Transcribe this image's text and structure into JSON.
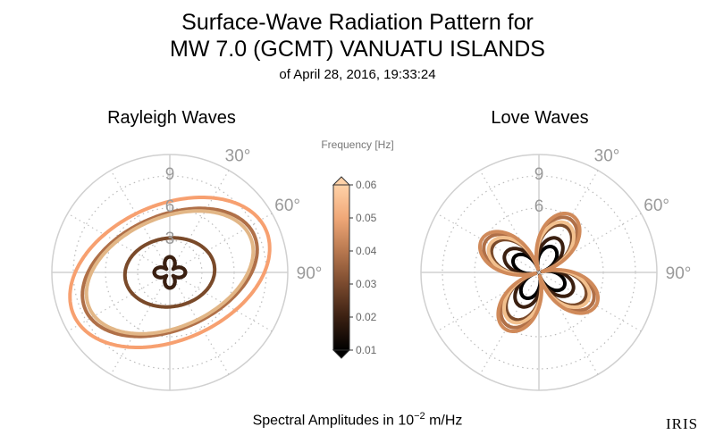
{
  "header": {
    "title_line1": "Surface-Wave Radiation Pattern for",
    "title_line2": "MW 7.0 (GCMT) VANUATU ISLANDS",
    "subtitle": "of April 28, 2016, 19:33:24"
  },
  "footer": {
    "label_prefix": "Spectral Amplitudes in 10",
    "label_exp": "−2",
    "label_unit": " m/Hz"
  },
  "logo_text": "IRIS",
  "chart_data": [
    {
      "type": "polar-line",
      "title": "Rayleigh Waves",
      "radial_ticks": [
        "3",
        "6",
        "9"
      ],
      "radial_tick_values": [
        3,
        6,
        9
      ],
      "rmax": 11,
      "angle_ticks": [
        "30°",
        "60°",
        "90°"
      ],
      "angle_tick_values": [
        30,
        60,
        90
      ],
      "grid": true,
      "series": [
        {
          "frequency": 0.01,
          "color": "#1a0d05",
          "shape": "four-lobe",
          "a": 1.0,
          "b": 0.45,
          "angle": 45
        },
        {
          "frequency": 0.02,
          "color": "#3a1f10",
          "shape": "four-lobe",
          "a": 1.0,
          "b": 0.45,
          "angle": 45
        },
        {
          "frequency": 0.03,
          "color": "#7a4a2a",
          "shape": "ellipse",
          "a": 4.2,
          "b": 3.2,
          "tilt": 8
        },
        {
          "frequency": 0.04,
          "color": "#b07048",
          "shape": "ellipse",
          "a": 8.6,
          "b": 5.3,
          "tilt": 24
        },
        {
          "frequency": 0.05,
          "color": "#e2b686",
          "shape": "ellipse",
          "a": 8.2,
          "b": 5.1,
          "tilt": 24
        },
        {
          "frequency": 0.06,
          "color": "#f7a070",
          "shape": "ellipse",
          "a": 9.8,
          "b": 6.3,
          "tilt": 24
        }
      ]
    },
    {
      "type": "polar-line",
      "title": "Love Waves",
      "radial_ticks": [
        "6",
        "9"
      ],
      "radial_tick_values": [
        6,
        9
      ],
      "rmax": 11,
      "angle_ticks": [
        "30°",
        "60°",
        "90°"
      ],
      "angle_tick_values": [
        30,
        60,
        90
      ],
      "grid": true,
      "series": [
        {
          "frequency": 0.01,
          "color": "#000000",
          "shape": "four-lobe",
          "a": 2.4,
          "b": 0.3,
          "angle": 15
        },
        {
          "frequency": 0.02,
          "color": "#3a1f10",
          "shape": "four-lobe",
          "a": 3.3,
          "b": 0.3,
          "angle": 15
        },
        {
          "frequency": 0.03,
          "color": "#7a4a2a",
          "shape": "four-lobe",
          "a": 4.6,
          "b": 0.35,
          "angle": 15
        },
        {
          "frequency": 0.04,
          "color": "#b07048",
          "shape": "four-lobe",
          "a": 5.4,
          "b": 0.35,
          "angle": 15
        },
        {
          "frequency": 0.05,
          "color": "#f2c08e",
          "shape": "four-lobe",
          "a": 4.9,
          "b": 0.35,
          "angle": 15
        },
        {
          "frequency": 0.06,
          "color": "#d08a5a",
          "shape": "four-lobe",
          "a": 5.8,
          "b": 0.35,
          "angle": 15
        }
      ]
    }
  ],
  "colorbar": {
    "label": "Frequency [Hz]",
    "min": 0.01,
    "max": 0.06,
    "ticks": [
      "0.01",
      "0.02",
      "0.03",
      "0.04",
      "0.05",
      "0.06"
    ],
    "tick_values": [
      0.01,
      0.02,
      0.03,
      0.04,
      0.05,
      0.06
    ],
    "stops": [
      "#000000",
      "#3b2012",
      "#7a4a2e",
      "#b8784f",
      "#f0a878",
      "#ffd2a8"
    ]
  }
}
